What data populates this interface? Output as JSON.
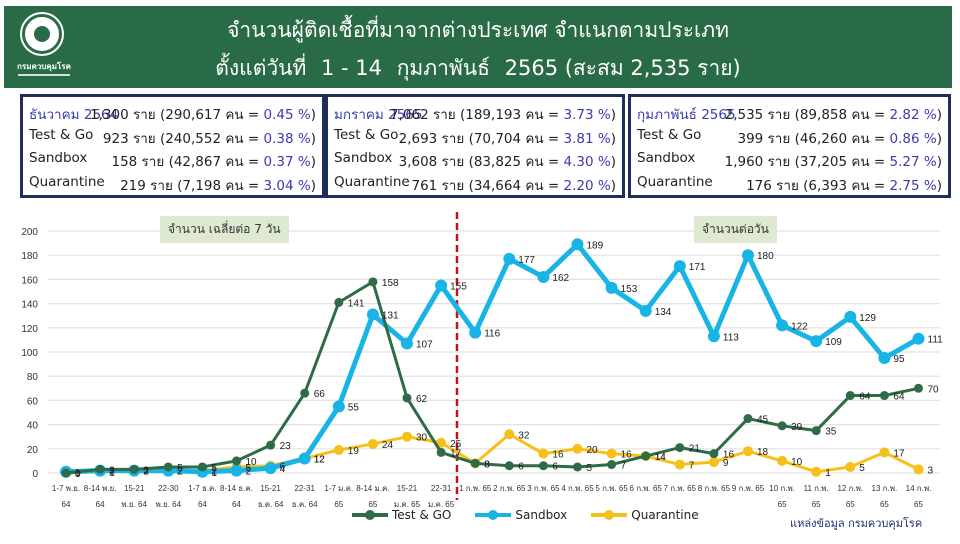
{
  "header": {
    "logo_text": "กรมควบคุมโรค",
    "title_line1": "จำนวนผู้ติดเชื้อที่มาจากต่างประเทศ จำแนกตามประเภท",
    "title_line2_parts": [
      "ตั้งแต่วันที่",
      "1 - 14",
      "กุมภาพันธ์",
      "2565 (สะสม 2,535 ราย)"
    ]
  },
  "summary_boxes": [
    {
      "rows": [
        {
          "label": "ธันวาคม 2564",
          "count": "1,300 ราย",
          "detail": "(290,617 คน = ",
          "pct": "0.45 %",
          "close": ")"
        },
        {
          "label": "Test & Go",
          "count": "923  ราย",
          "detail": "(240,552 คน = ",
          "pct": "0.38 %",
          "close": ")"
        },
        {
          "label": "Sandbox",
          "count": "158  ราย",
          "detail": "(42,867 คน   = ",
          "pct": "0.37 %",
          "close": ")"
        },
        {
          "label": "Quarantine",
          "count": "219  ราย",
          "detail": "(7,198 คน    = ",
          "pct": "3.04 %",
          "close": ")"
        }
      ]
    },
    {
      "rows": [
        {
          "label": "มกราคม 2565",
          "count": "7,062 ราย",
          "detail": "(189,193 คน = ",
          "pct": "3.73 %",
          "close": ")"
        },
        {
          "label": "Test & Go",
          "count": "2,693 ราย",
          "detail": "(70,704 คน = ",
          "pct": "3.81 %",
          "close": ")"
        },
        {
          "label": "Sandbox",
          "count": "3,608 ราย",
          "detail": "(83,825 คน = ",
          "pct": "4.30 %",
          "close": ")"
        },
        {
          "label": "Quarantine",
          "count": "761 ราย",
          "detail": "(34,664 คน = ",
          "pct": "2.20 %",
          "close": ")"
        }
      ]
    },
    {
      "rows": [
        {
          "label": "กุมภาพันธ์ 2565",
          "count": "2,535 ราย",
          "detail": "(89,858 คน  = ",
          "pct": "2.82 %",
          "close": ")"
        },
        {
          "label": "Test & Go",
          "count": "399 ราย",
          "detail": "(46,260 คน  = ",
          "pct": "0.86 %",
          "close": ")"
        },
        {
          "label": "Sandbox",
          "count": "1,960 ราย",
          "detail": "(37,205 คน  = ",
          "pct": "5.27 %",
          "close": ")"
        },
        {
          "label": "Quarantine",
          "count": "176 ราย",
          "detail": "(6,393 คน    = ",
          "pct": "2.75 %",
          "close": ")"
        }
      ]
    }
  ],
  "chart_annotations": {
    "left": "จำนวน เฉลี่ยต่อ 7 วัน",
    "right": "จำนวนต่อวัน"
  },
  "source": "แหล่งข้อมูล กรมควบคุมโรค",
  "colors": {
    "test_go": "#2e6b46",
    "sandbox": "#19b4e6",
    "quarantine": "#f5c018",
    "divider": "#c0141c",
    "header_bg": "#2a6b47",
    "box_border": "#1f2d5a"
  },
  "chart_data": {
    "type": "line",
    "title": "",
    "xlabel": "",
    "ylabel": "",
    "ylim": [
      0,
      200
    ],
    "yticks": [
      0,
      20,
      40,
      60,
      80,
      100,
      120,
      140,
      160,
      180,
      200
    ],
    "grid": true,
    "legend_position": "bottom",
    "categories": [
      [
        "1-7 พ.ย.",
        "64"
      ],
      [
        "8-14 พ.ย.",
        "64"
      ],
      [
        "15-21",
        "พ.ย. 64"
      ],
      [
        "22-30",
        "พ.ย. 64"
      ],
      [
        "1-7 ธ.ค.",
        "64"
      ],
      [
        "8-14 ธ.ค.",
        "64"
      ],
      [
        "15-21",
        "ธ.ค. 64"
      ],
      [
        "22-31",
        "ธ.ค. 64"
      ],
      [
        "1-7 ม.ค.",
        "65"
      ],
      [
        "8-14 ม.ค.",
        "65"
      ],
      [
        "15-21",
        "ม.ค. 65"
      ],
      [
        "22-31",
        "ม.ค. 65"
      ],
      [
        "1 ก.พ. 65",
        ""
      ],
      [
        "2 ก.พ. 65",
        ""
      ],
      [
        "3 ก.พ. 65",
        ""
      ],
      [
        "4 ก.พ. 65",
        ""
      ],
      [
        "5 ก.พ. 65",
        ""
      ],
      [
        "6 ก.พ. 65",
        ""
      ],
      [
        "7 ก.พ. 65",
        ""
      ],
      [
        "8 ก.พ. 65",
        ""
      ],
      [
        "9 ก.พ. 65",
        ""
      ],
      [
        "10 ก.พ.",
        "65"
      ],
      [
        "11 ก.พ.",
        "65"
      ],
      [
        "12 ก.พ.",
        "65"
      ],
      [
        "13 ก.พ.",
        "65"
      ],
      [
        "14 ก.พ.",
        "65"
      ]
    ],
    "series": [
      {
        "name": "Test & GO",
        "values": [
          0,
          3,
          3,
          5,
          5,
          10,
          23,
          66,
          141,
          158,
          62,
          17,
          8,
          6,
          6,
          5,
          7,
          14,
          21,
          16,
          45,
          39,
          35,
          64,
          64,
          70
        ]
      },
      {
        "name": "Sandbox",
        "values": [
          1,
          2,
          2,
          2,
          1,
          2,
          4,
          12,
          55,
          131,
          107,
          155,
          116,
          177,
          162,
          189,
          153,
          134,
          171,
          113,
          180,
          122,
          109,
          129,
          95,
          111
        ]
      },
      {
        "name": "Quarantine",
        "values": [
          0,
          1,
          2,
          2,
          2,
          5,
          6,
          12,
          19,
          24,
          30,
          25,
          8,
          32,
          16,
          20,
          16,
          14,
          7,
          9,
          18,
          10,
          1,
          5,
          17,
          3
        ]
      }
    ],
    "annotations": [
      "จำนวน เฉลี่ยต่อ 7 วัน",
      "จำนวนต่อวัน"
    ],
    "divider_between": [
      "22-31 ม.ค. 65",
      "1 ก.พ. 65"
    ]
  }
}
